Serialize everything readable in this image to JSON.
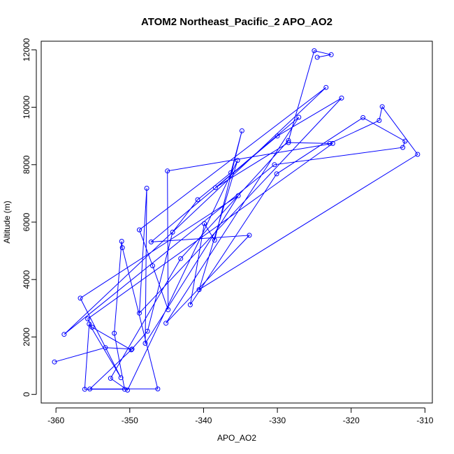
{
  "chart_data": {
    "type": "line",
    "title": "ATOM2 Northeast_Pacific_2 APO_AO2",
    "xlabel": "APO_AO2",
    "ylabel": "Altitude (m)",
    "xlim": [
      -362,
      -309
    ],
    "ylim": [
      -300,
      12300
    ],
    "xticks": [
      -360,
      -350,
      -340,
      -330,
      -320,
      -310
    ],
    "yticks": [
      0,
      2000,
      4000,
      6000,
      8000,
      10000,
      12000
    ],
    "grid": false,
    "color": "#0000ff",
    "marker": "open-circle",
    "series": [
      {
        "points": [
          [
            -360.2,
            1130
          ],
          [
            -353.3,
            1630
          ],
          [
            -349.7,
            1580
          ],
          [
            -347.6,
            2200
          ],
          [
            -344.2,
            5650
          ],
          [
            -340.8,
            6780
          ],
          [
            -336.3,
            7720
          ],
          [
            -334.8,
            9180
          ],
          [
            -338.5,
            5370
          ],
          [
            -339.9,
            5950
          ],
          [
            -341.8,
            3120
          ],
          [
            -330.1,
            7680
          ],
          [
            -318.4,
            9640
          ],
          [
            -312.7,
            8820
          ],
          [
            -313.0,
            8600
          ],
          [
            -330.4,
            8000
          ],
          [
            -358.9,
            2090
          ],
          [
            -323.4,
            10690
          ],
          [
            -348.7,
            5730
          ],
          [
            -346.9,
            4480
          ],
          [
            -344.8,
            2950
          ],
          [
            -344.9,
            7780
          ],
          [
            -322.5,
            8740
          ],
          [
            -355.7,
            2630
          ],
          [
            -355.1,
            2340
          ],
          [
            -349.8,
            1550
          ],
          [
            -355.4,
            190
          ],
          [
            -346.2,
            190
          ],
          [
            -351.0,
            5110
          ],
          [
            -351.1,
            5330
          ],
          [
            -352.1,
            2130
          ],
          [
            -350.7,
            180
          ],
          [
            -356.1,
            180
          ],
          [
            -355.5,
            2450
          ],
          [
            -351.2,
            580
          ],
          [
            -356.7,
            3350
          ],
          [
            -335.3,
            6920
          ],
          [
            -347.9,
            1780
          ],
          [
            -347.7,
            7180
          ],
          [
            -348.7,
            2830
          ],
          [
            -321.3,
            10320
          ],
          [
            -330.0,
            9000
          ],
          [
            -347.1,
            5310
          ],
          [
            -333.8,
            5540
          ],
          [
            -345.1,
            2480
          ],
          [
            -327.1,
            9650
          ],
          [
            -338.4,
            7200
          ],
          [
            -328.5,
            8770
          ],
          [
            -322.9,
            8740
          ],
          [
            -316.2,
            9540
          ],
          [
            -315.8,
            10020
          ],
          [
            -311.0,
            8360
          ],
          [
            -340.6,
            3650
          ],
          [
            -335.4,
            8150
          ],
          [
            -350.3,
            150
          ],
          [
            -352.6,
            560
          ],
          [
            -343.1,
            4730
          ],
          [
            -328.5,
            8840
          ],
          [
            -325.0,
            11970
          ],
          [
            -322.7,
            11830
          ],
          [
            -324.6,
            11740
          ]
        ]
      }
    ]
  }
}
